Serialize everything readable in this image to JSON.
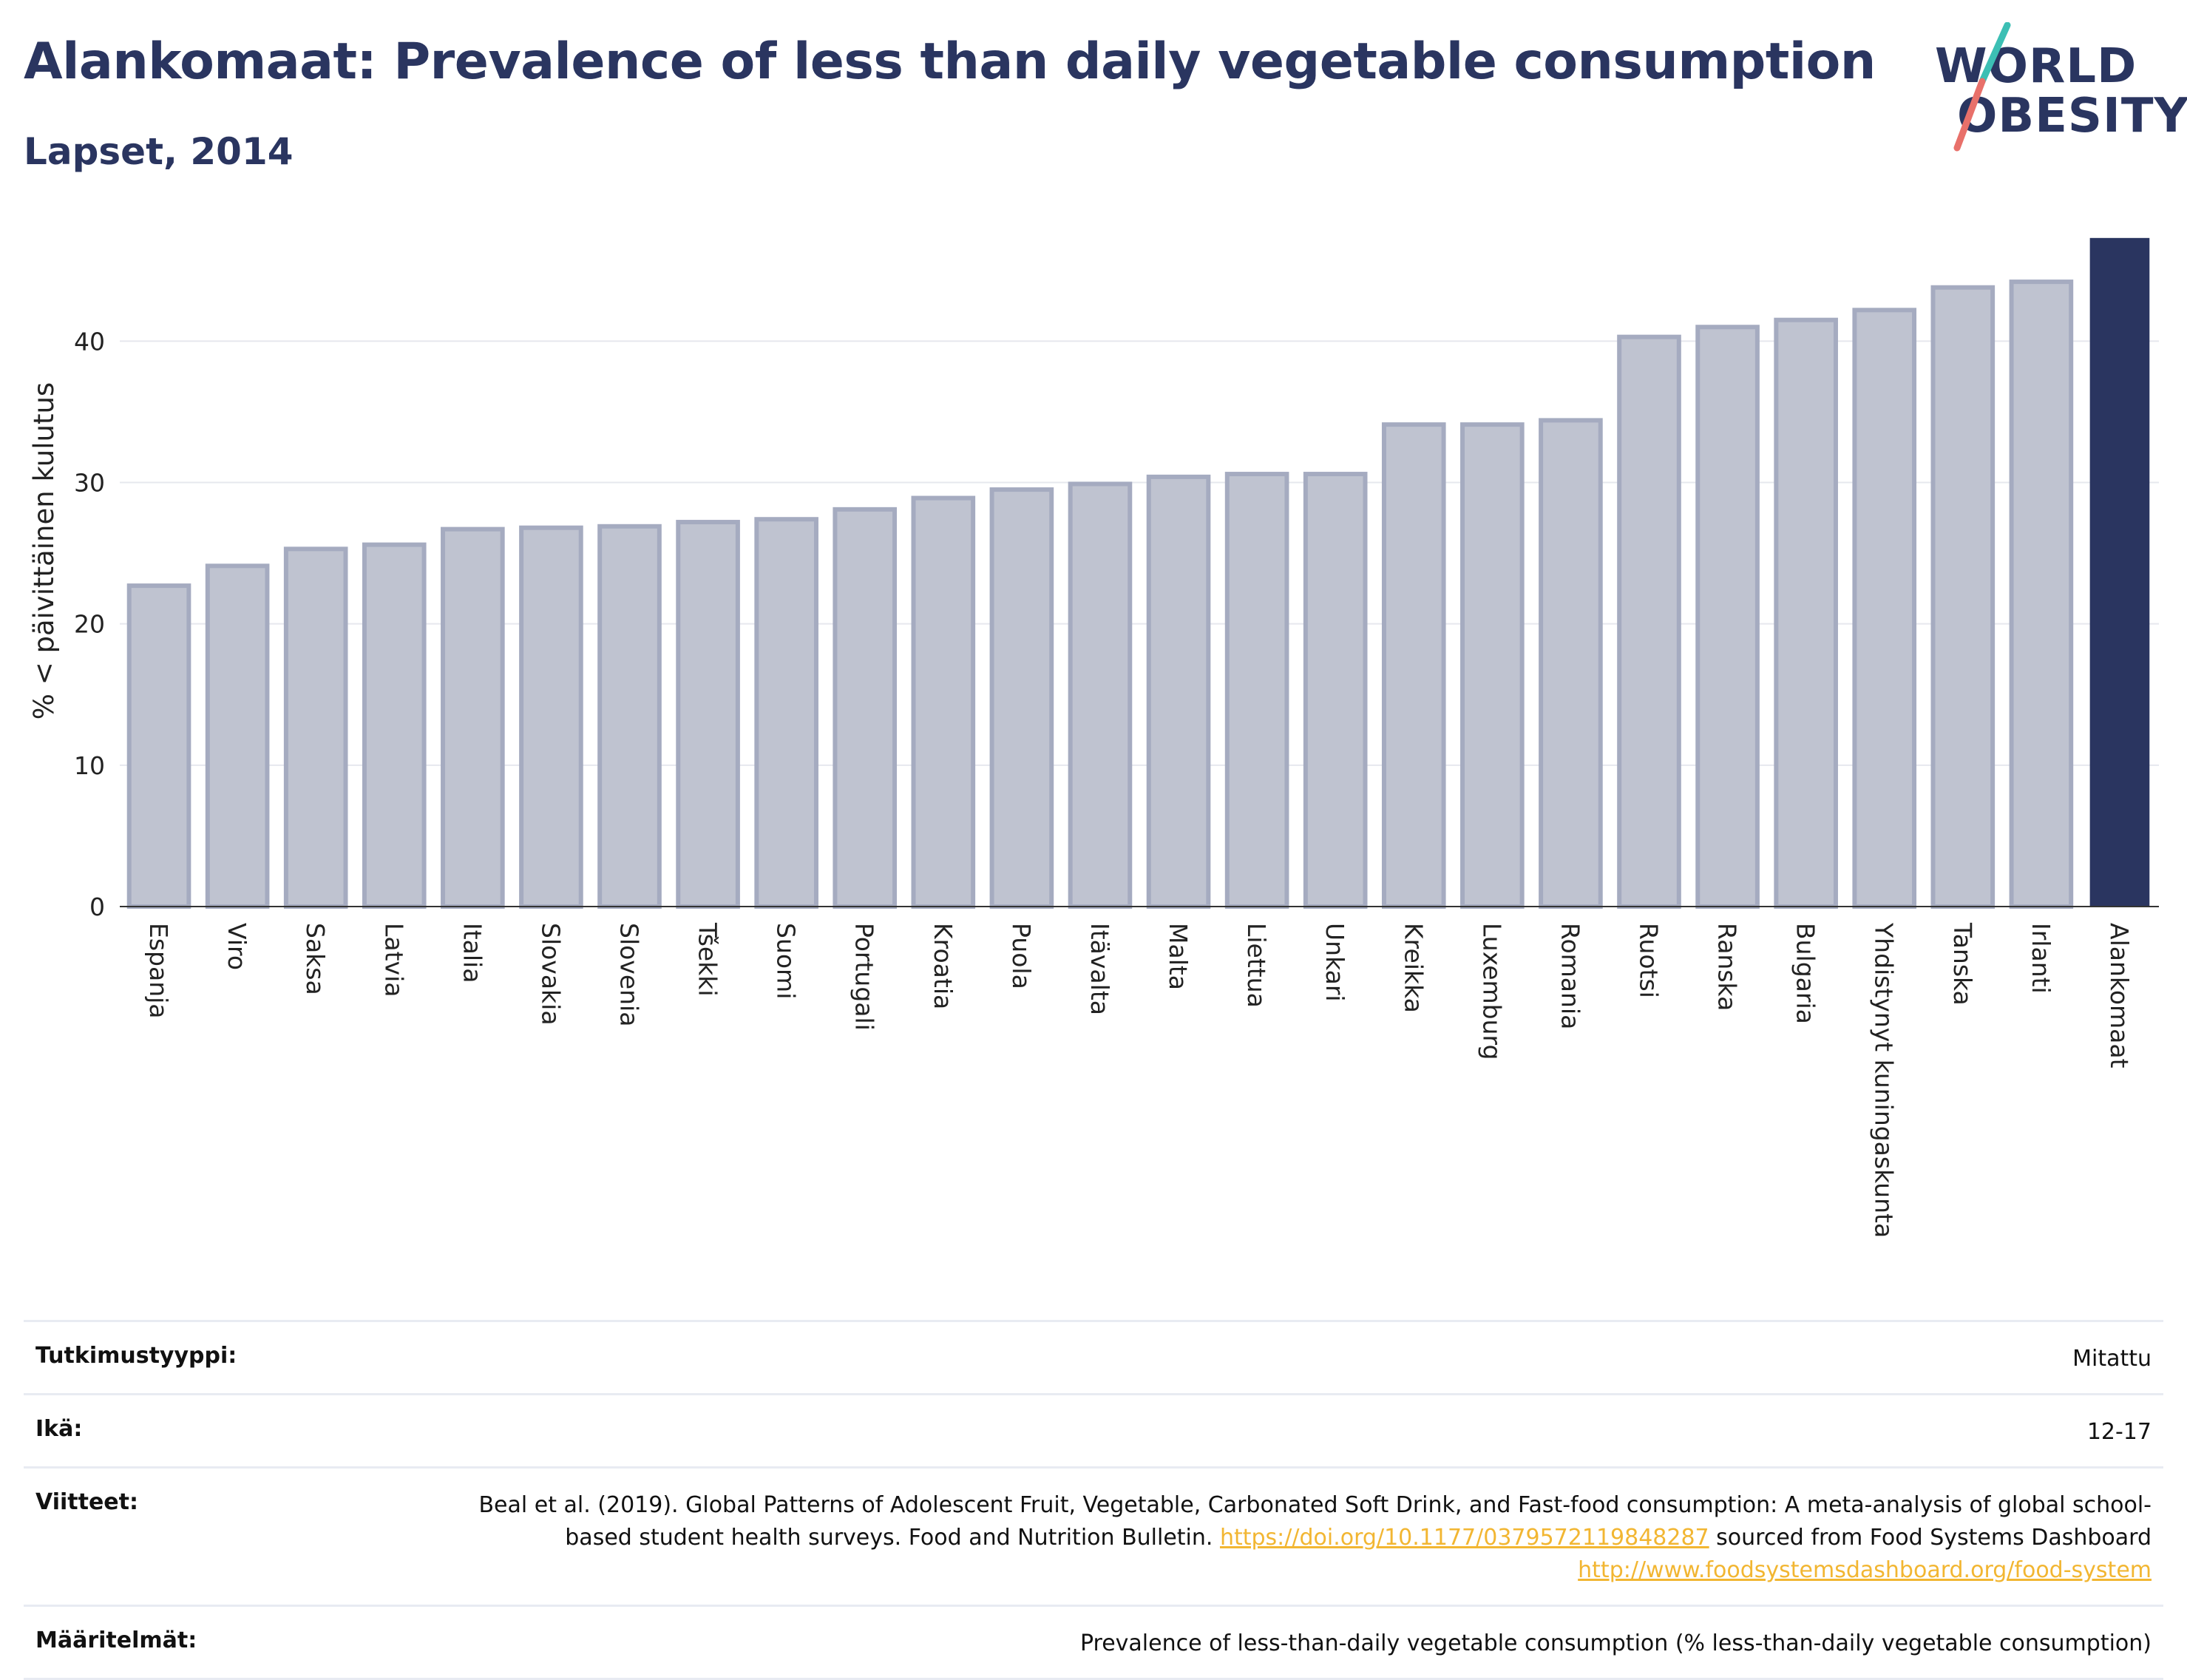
{
  "title": "Alankomaat: Prevalence of less than daily vegetable consumption",
  "subtitle": "Lapset, 2014",
  "logo": {
    "line1": "WORLD",
    "line2": "OBESITY"
  },
  "colors": {
    "bar": "#bfc3d0",
    "bar_stroke": "#a5abc0",
    "highlight": "#2a3560",
    "text": "#2a3560",
    "link": "#f2b632"
  },
  "chart_data": {
    "type": "bar",
    "ylabel": "% < päivittäinen kulutus",
    "xlabel": "",
    "ylim": [
      0,
      47.5
    ],
    "yticks": [
      0,
      10,
      20,
      30,
      40
    ],
    "grid": true,
    "categories": [
      "Espanja",
      "Viro",
      "Saksa",
      "Latvia",
      "Italia",
      "Slovakia",
      "Slovenia",
      "Tšekki",
      "Suomi",
      "Portugali",
      "Kroatia",
      "Puola",
      "Itävalta",
      "Malta",
      "Liettua",
      "Unkari",
      "Kreikka",
      "Luxemburg",
      "Romania",
      "Ruotsi",
      "Ranska",
      "Bulgaria",
      "Yhdistynyt kuningaskunta",
      "Tanska",
      "Irlanti",
      "Alankomaat"
    ],
    "values": [
      22.7,
      24.1,
      25.3,
      25.6,
      26.7,
      26.8,
      26.9,
      27.2,
      27.4,
      28.1,
      28.9,
      29.5,
      29.9,
      30.4,
      30.6,
      30.6,
      34.1,
      34.1,
      34.4,
      40.3,
      41.0,
      41.5,
      42.2,
      43.8,
      44.2,
      47.3
    ],
    "highlight": "Alankomaat"
  },
  "meta": [
    {
      "key": "Tutkimustyyppi:",
      "value": "Mitattu"
    },
    {
      "key": "Ikä:",
      "value": "12-17"
    },
    {
      "key": "Viitteet:",
      "value_parts": [
        "Beal et al. (2019). Global Patterns of Adolescent Fruit, Vegetable, Carbonated Soft Drink, and Fast-food consumption: A meta-analysis of global school-based student health surveys. Food and Nutrition Bulletin. ",
        "https://doi.org/10.1177/0379572119848287",
        " sourced from Food Systems Dashboard ",
        "http://www.foodsystemsdashboard.org/food-system"
      ]
    },
    {
      "key": "Määritelmät:",
      "value": "Prevalence of less-than-daily vegetable consumption (% less-than-daily vegetable consumption)"
    }
  ]
}
